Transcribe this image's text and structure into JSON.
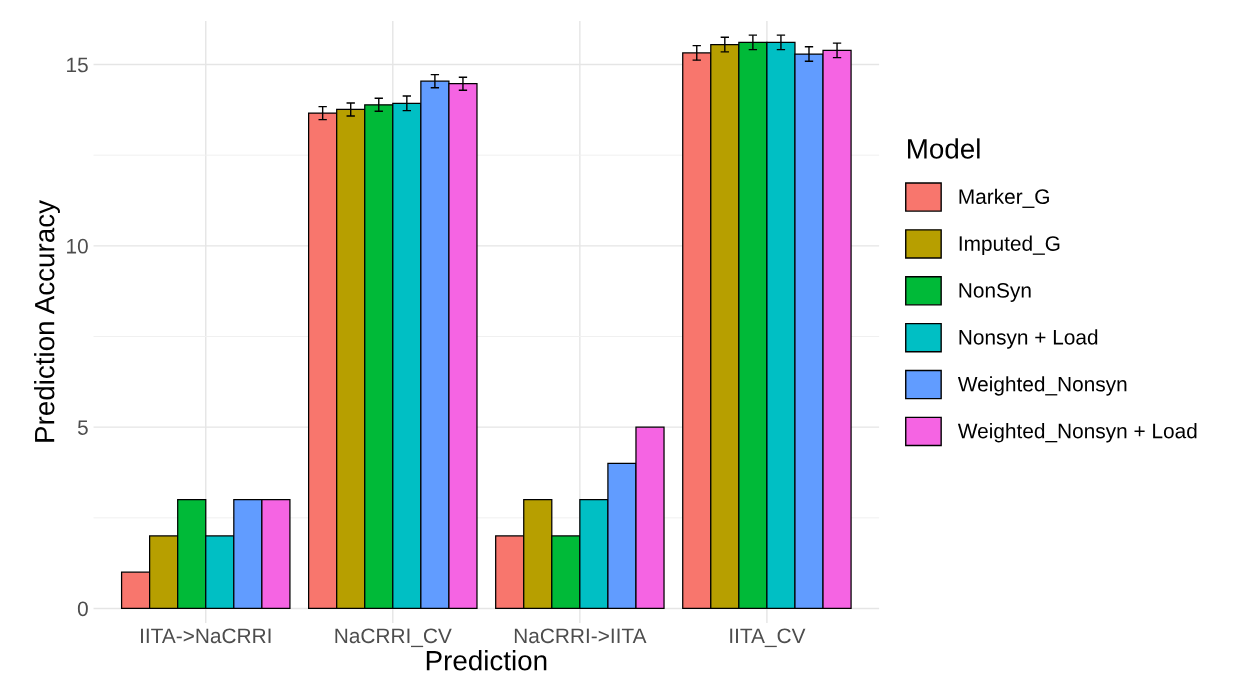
{
  "chart_data": {
    "type": "bar",
    "xlabel": "Prediction",
    "ylabel": "Prediction Accuracy",
    "legend_title": "Model",
    "legend": "right",
    "categories": [
      "IITA->NaCRRI",
      "NaCRRI_CV",
      "NaCRRI->IITA",
      "IITA_CV"
    ],
    "series": [
      {
        "name": "Marker_G",
        "color": "#f8766d",
        "values": [
          1,
          13.66,
          2,
          15.32
        ],
        "errors": [
          null,
          0.18,
          null,
          0.2
        ]
      },
      {
        "name": "Imputed_G",
        "color": "#b79f00",
        "values": [
          2,
          13.76,
          3,
          15.55
        ],
        "errors": [
          null,
          0.18,
          null,
          0.2
        ]
      },
      {
        "name": "NonSyn",
        "color": "#00ba38",
        "values": [
          3,
          13.89,
          2,
          15.61
        ],
        "errors": [
          null,
          0.18,
          null,
          0.2
        ]
      },
      {
        "name": "Nonsyn + Load",
        "color": "#00bfc4",
        "values": [
          2,
          13.93,
          3,
          15.61
        ],
        "errors": [
          null,
          0.2,
          null,
          0.2
        ]
      },
      {
        "name": "Weighted_Nonsyn",
        "color": "#619cff",
        "values": [
          3,
          14.54,
          4,
          15.29
        ],
        "errors": [
          null,
          0.18,
          null,
          0.2
        ]
      },
      {
        "name": "Weighted_Nonsyn + Load",
        "color": "#f564e3",
        "values": [
          3,
          14.47,
          5,
          15.39
        ],
        "errors": [
          null,
          0.18,
          null,
          0.2
        ]
      }
    ],
    "ylim": [
      -0.4,
      16.2
    ],
    "yticks": [
      0,
      5,
      10,
      15
    ],
    "grid": true
  }
}
